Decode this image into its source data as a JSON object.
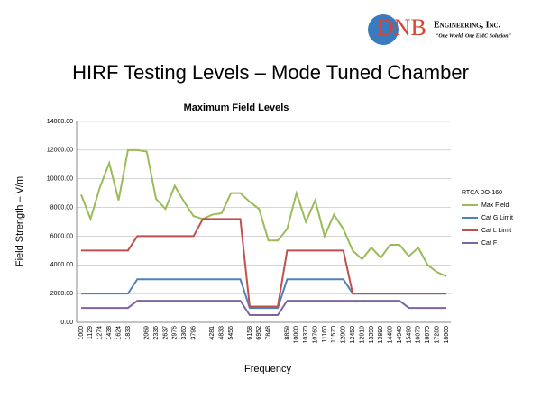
{
  "header": {
    "company": "DNB",
    "company_suffix": "Engineering, Inc.",
    "tagline": "\"One World, One EMC Solution\"",
    "slide_title": "HIRF Testing Levels – Mode Tuned Chamber"
  },
  "chart_data": {
    "type": "line",
    "title": "Maximum Field Levels",
    "x_label": "Frequency",
    "y_label": "Field Strength – V/m",
    "legend_title": "RTCA DO-160",
    "legend": "right",
    "grid": true,
    "categories": [
      "1000",
      "1129",
      "1274",
      "1438",
      "1624",
      "1833",
      null,
      "2069",
      "2336",
      "2637",
      "2976",
      "3360",
      "3796",
      null,
      "4281",
      "4833",
      "5456",
      null,
      "6158",
      "6952",
      "7848",
      null,
      "8859",
      "10000",
      "10370",
      "10760",
      "11160",
      "11570",
      "12000",
      "12450",
      "12910",
      "13390",
      "13890",
      "14400",
      "14940",
      "15490",
      "16070",
      "16670",
      "17280",
      "18000"
    ],
    "ylim": [
      0,
      14000
    ],
    "yticks": [
      {
        "value": 0,
        "label": "0.00"
      },
      {
        "value": 2000,
        "label": "2000.00"
      },
      {
        "value": 4000,
        "label": "4000.00"
      },
      {
        "value": 6000,
        "label": "6000.00"
      },
      {
        "value": 8000,
        "label": "8000.00"
      },
      {
        "value": 10000,
        "label": "10000.00"
      },
      {
        "value": 12000,
        "label": "12000.00"
      },
      {
        "value": 14000,
        "label": "14000.00"
      }
    ],
    "series": [
      {
        "name": "Max Field",
        "color": "#9bbb59",
        "values": [
          8900,
          7200,
          9400,
          11100,
          8500,
          12000,
          12000,
          11900,
          8600,
          7900,
          9500,
          8400,
          7400,
          7200,
          7500,
          7600,
          9000,
          9000,
          8400,
          7900,
          5700,
          5700,
          6500,
          9000,
          7000,
          8500,
          6000,
          7500,
          6500,
          5000,
          4400,
          5200,
          4500,
          5400,
          5400,
          4600,
          5200,
          4000,
          3500,
          3200
        ]
      },
      {
        "name": "Cat G Limit",
        "color": "#4f81bd",
        "values": [
          2000,
          2000,
          2000,
          2000,
          2000,
          2000,
          3000,
          3000,
          3000,
          3000,
          3000,
          3000,
          3000,
          3000,
          3000,
          3000,
          3000,
          3000,
          1000,
          1000,
          1000,
          1000,
          3000,
          3000,
          3000,
          3000,
          3000,
          3000,
          3000,
          2000,
          2000,
          2000,
          2000,
          2000,
          2000,
          2000,
          2000,
          2000,
          2000,
          2000
        ]
      },
      {
        "name": "Cat L Limit",
        "color": "#c0504d",
        "values": [
          5000,
          5000,
          5000,
          5000,
          5000,
          5000,
          6000,
          6000,
          6000,
          6000,
          6000,
          6000,
          6000,
          7200,
          7200,
          7200,
          7200,
          7200,
          1100,
          1100,
          1100,
          1100,
          5000,
          5000,
          5000,
          5000,
          5000,
          5000,
          5000,
          2000,
          2000,
          2000,
          2000,
          2000,
          2000,
          2000,
          2000,
          2000,
          2000,
          2000
        ]
      },
      {
        "name": "Cat F",
        "color": "#8064a2",
        "values": [
          1000,
          1000,
          1000,
          1000,
          1000,
          1000,
          1500,
          1500,
          1500,
          1500,
          1500,
          1500,
          1500,
          1500,
          1500,
          1500,
          1500,
          1500,
          500,
          500,
          500,
          500,
          1500,
          1500,
          1500,
          1500,
          1500,
          1500,
          1500,
          1500,
          1500,
          1500,
          1500,
          1500,
          1500,
          1000,
          1000,
          1000,
          1000,
          1000
        ]
      }
    ]
  }
}
